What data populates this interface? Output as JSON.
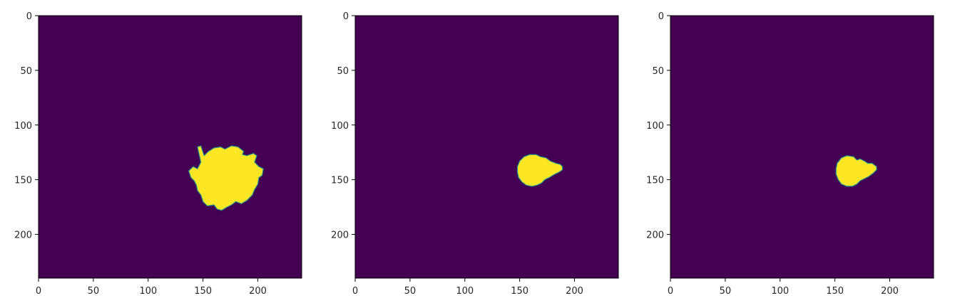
{
  "chart_data": [
    {
      "type": "heatmap",
      "title": "",
      "xlabel": "",
      "ylabel": "",
      "image_size": [
        240,
        240
      ],
      "xlim": [
        0,
        240
      ],
      "ylim": [
        240,
        0
      ],
      "x_ticks": [
        0,
        50,
        100,
        150,
        200
      ],
      "y_ticks": [
        0,
        50,
        100,
        150,
        200
      ],
      "grid": false,
      "background_color": "#440154",
      "foreground_color": "#fde725",
      "edge_color": "#21918c",
      "mask_region": {
        "x_range": [
          137,
          205
        ],
        "y_range": [
          119,
          178
        ],
        "center": [
          170,
          148
        ]
      }
    },
    {
      "type": "heatmap",
      "title": "",
      "xlabel": "",
      "ylabel": "",
      "image_size": [
        240,
        240
      ],
      "xlim": [
        0,
        240
      ],
      "ylim": [
        240,
        0
      ],
      "x_ticks": [
        0,
        50,
        100,
        150,
        200
      ],
      "y_ticks": [
        0,
        50,
        100,
        150,
        200
      ],
      "grid": false,
      "background_color": "#440154",
      "foreground_color": "#fde725",
      "edge_color": "#21918c",
      "mask_region": {
        "x_range": [
          148,
          189
        ],
        "y_range": [
          127,
          156
        ],
        "center": [
          165,
          141
        ]
      }
    },
    {
      "type": "heatmap",
      "title": "",
      "xlabel": "",
      "ylabel": "",
      "image_size": [
        240,
        240
      ],
      "xlim": [
        0,
        240
      ],
      "ylim": [
        240,
        0
      ],
      "x_ticks": [
        0,
        50,
        100,
        150,
        200
      ],
      "y_ticks": [
        0,
        50,
        100,
        150,
        200
      ],
      "grid": false,
      "background_color": "#440154",
      "foreground_color": "#fde725",
      "edge_color": "#21918c",
      "mask_region": {
        "x_range": [
          151,
          188
        ],
        "y_range": [
          128,
          156
        ],
        "center": [
          166,
          142
        ]
      }
    }
  ]
}
